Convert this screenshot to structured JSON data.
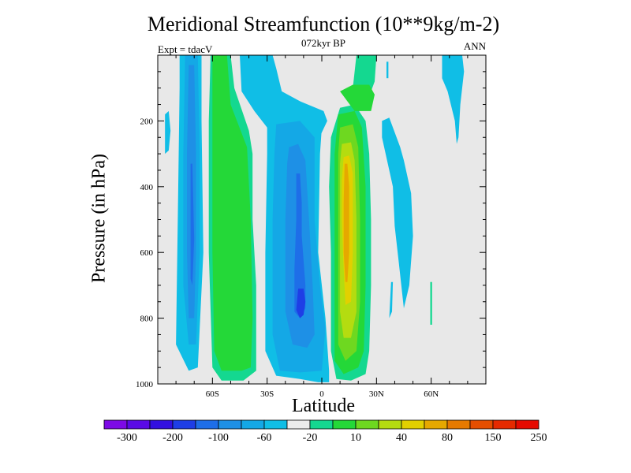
{
  "chart_data": {
    "type": "contour",
    "title": "Meridional Streamfunction (10**9kg/m-2)",
    "subtitle": "072kyr BP",
    "left_label": "Expt = tdacV",
    "right_label": "ANN",
    "xlabel": "Latitude",
    "ylabel": "Pressure (in hPa)",
    "xlim": [
      -90,
      90
    ],
    "ylim": [
      0,
      1000
    ],
    "y_reversed": true,
    "x_ticks": [
      {
        "v": -60,
        "label": "60S"
      },
      {
        "v": -30,
        "label": "30S"
      },
      {
        "v": 0,
        "label": "0"
      },
      {
        "v": 30,
        "label": "30N"
      },
      {
        "v": 60,
        "label": "60N"
      }
    ],
    "y_ticks": [
      {
        "v": 200,
        "label": "200"
      },
      {
        "v": 400,
        "label": "400"
      },
      {
        "v": 600,
        "label": "600"
      },
      {
        "v": 800,
        "label": "800"
      },
      {
        "v": 1000,
        "label": "1000"
      }
    ],
    "colorbar": {
      "colors": [
        "#7d0ae6",
        "#5a0ae6",
        "#3210e0",
        "#1e3ee6",
        "#1e6ee8",
        "#1e90e6",
        "#14a8e6",
        "#10bee6",
        "#ececec",
        "#14d890",
        "#24d838",
        "#6ed820",
        "#b4dc10",
        "#e2d000",
        "#e6a800",
        "#e67a00",
        "#e64e00",
        "#e62a00",
        "#e60a00"
      ],
      "labels": [
        {
          "i": 1,
          "t": "-300"
        },
        {
          "i": 3,
          "t": "-200"
        },
        {
          "i": 5,
          "t": "-100"
        },
        {
          "i": 7,
          "t": "-60"
        },
        {
          "i": 9,
          "t": "-20"
        },
        {
          "i": 11,
          "t": "10"
        },
        {
          "i": 13,
          "t": "40"
        },
        {
          "i": 15,
          "t": "80"
        },
        {
          "i": 17,
          "t": "150"
        },
        {
          "i": 19,
          "t": "250"
        }
      ]
    },
    "cells": [
      {
        "name": "sh-polar-cell",
        "level": -20,
        "color": "#10bee6",
        "pts": [
          [
            -78,
            0
          ],
          [
            -66,
            0
          ],
          [
            -66,
            200
          ],
          [
            -65,
            600
          ],
          [
            -68,
            950
          ],
          [
            -73,
            960
          ],
          [
            -80,
            880
          ],
          [
            -79,
            500
          ],
          [
            -78,
            100
          ]
        ]
      },
      {
        "name": "sh-polar-cell",
        "level": -40,
        "color": "#14a8e6",
        "pts": [
          [
            -75,
            0
          ],
          [
            -68,
            0
          ],
          [
            -67,
            300
          ],
          [
            -67,
            600
          ],
          [
            -69,
            880
          ],
          [
            -73,
            880
          ],
          [
            -76,
            700
          ],
          [
            -76,
            300
          ]
        ]
      },
      {
        "name": "sh-polar-cell",
        "level": -60,
        "color": "#1e90e6",
        "pts": [
          [
            -73,
            30
          ],
          [
            -70,
            30
          ],
          [
            -69,
            300
          ],
          [
            -69,
            600
          ],
          [
            -70,
            800
          ],
          [
            -73,
            800
          ],
          [
            -74,
            600
          ],
          [
            -74,
            300
          ]
        ]
      },
      {
        "name": "sh-polar-cell",
        "level": -80,
        "color": "#1e6ee8",
        "pts": [
          [
            -72,
            330
          ],
          [
            -71,
            330
          ],
          [
            -70,
            560
          ],
          [
            -71,
            700
          ],
          [
            -72,
            680
          ],
          [
            -72,
            500
          ]
        ]
      },
      {
        "name": "ferrel-cell",
        "level": 10,
        "color": "#14d890",
        "pts": [
          [
            -61,
            0
          ],
          [
            -50,
            0
          ],
          [
            -48,
            100
          ],
          [
            -40,
            230
          ],
          [
            -38,
            300
          ],
          [
            -38,
            500
          ],
          [
            -36,
            700
          ],
          [
            -36,
            960
          ],
          [
            -43,
            990
          ],
          [
            -55,
            990
          ],
          [
            -60,
            950
          ],
          [
            -62,
            600
          ],
          [
            -62,
            200
          ]
        ]
      },
      {
        "name": "ferrel-cell",
        "level": 20,
        "color": "#24d838",
        "pts": [
          [
            -60,
            0
          ],
          [
            -52,
            0
          ],
          [
            -50,
            150
          ],
          [
            -41,
            280
          ],
          [
            -39,
            500
          ],
          [
            -38,
            800
          ],
          [
            -39,
            950
          ],
          [
            -44,
            960
          ],
          [
            -55,
            960
          ],
          [
            -59,
            900
          ],
          [
            -60,
            600
          ],
          [
            -60,
            200
          ]
        ]
      },
      {
        "name": "nh-upper-cell",
        "level": -20,
        "color": "#10bee6",
        "pts": [
          [
            -45,
            0
          ],
          [
            -27,
            0
          ],
          [
            -25,
            40
          ],
          [
            -22,
            110
          ],
          [
            -12,
            140
          ],
          [
            1,
            170
          ],
          [
            3,
            200
          ],
          [
            -3,
            270
          ],
          [
            -8,
            310
          ],
          [
            -12,
            330
          ],
          [
            -20,
            310
          ],
          [
            -27,
            270
          ],
          [
            -30,
            220
          ],
          [
            -37,
            170
          ],
          [
            -44,
            110
          ]
        ]
      },
      {
        "name": "hadley-cell-south",
        "level": -20,
        "color": "#10bee6",
        "pts": [
          [
            -30,
            160
          ],
          [
            -12,
            145
          ],
          [
            -5,
            170
          ],
          [
            0,
            220
          ],
          [
            -1,
            300
          ],
          [
            -2,
            600
          ],
          [
            2,
            800
          ],
          [
            4,
            960
          ],
          [
            4,
            995
          ],
          [
            -2,
            995
          ],
          [
            -12,
            985
          ],
          [
            -25,
            975
          ],
          [
            -31,
            900
          ],
          [
            -31,
            600
          ],
          [
            -30,
            300
          ]
        ]
      },
      {
        "name": "hadley-cell-south",
        "level": -40,
        "color": "#14a8e6",
        "pts": [
          [
            -25,
            210
          ],
          [
            -12,
            200
          ],
          [
            -4,
            250
          ],
          [
            -4,
            500
          ],
          [
            -1,
            700
          ],
          [
            2,
            830
          ],
          [
            0,
            960
          ],
          [
            -12,
            965
          ],
          [
            -23,
            960
          ],
          [
            -27,
            850
          ],
          [
            -27,
            500
          ],
          [
            -26,
            300
          ]
        ]
      },
      {
        "name": "hadley-cell-south",
        "level": -60,
        "color": "#1e90e6",
        "pts": [
          [
            -18,
            280
          ],
          [
            -13,
            270
          ],
          [
            -9,
            320
          ],
          [
            -7,
            500
          ],
          [
            -5,
            700
          ],
          [
            -4,
            850
          ],
          [
            -8,
            890
          ],
          [
            -16,
            880
          ],
          [
            -20,
            780
          ],
          [
            -20,
            500
          ],
          [
            -19,
            330
          ]
        ]
      },
      {
        "name": "hadley-cell-south",
        "level": -80,
        "color": "#1e6ee8",
        "pts": [
          [
            -14,
            360
          ],
          [
            -12,
            360
          ],
          [
            -11,
            450
          ],
          [
            -11,
            550
          ],
          [
            -9,
            700
          ],
          [
            -9,
            770
          ],
          [
            -12,
            800
          ],
          [
            -15,
            780
          ],
          [
            -15,
            650
          ],
          [
            -14,
            500
          ]
        ]
      },
      {
        "name": "hadley-cell-south",
        "level": -100,
        "color": "#1e3ee6",
        "pts": [
          [
            -13,
            710
          ],
          [
            -10,
            710
          ],
          [
            -9,
            750
          ],
          [
            -10,
            790
          ],
          [
            -12,
            800
          ],
          [
            -14,
            775
          ]
        ]
      },
      {
        "name": "hadley-cell-north",
        "level": 10,
        "color": "#14d890",
        "pts": [
          [
            10,
            160
          ],
          [
            18,
            150
          ],
          [
            24,
            200
          ],
          [
            26,
            300
          ],
          [
            27,
            500
          ],
          [
            27,
            700
          ],
          [
            26,
            900
          ],
          [
            24,
            970
          ],
          [
            16,
            990
          ],
          [
            8,
            985
          ],
          [
            5,
            900
          ],
          [
            5,
            600
          ],
          [
            4,
            400
          ],
          [
            5,
            250
          ]
        ]
      },
      {
        "name": "hadley-cell-north",
        "level": 20,
        "color": "#24d838",
        "pts": [
          [
            9,
            180
          ],
          [
            18,
            170
          ],
          [
            22,
            220
          ],
          [
            24,
            400
          ],
          [
            24,
            700
          ],
          [
            23,
            900
          ],
          [
            20,
            950
          ],
          [
            12,
            970
          ],
          [
            7,
            930
          ],
          [
            7,
            500
          ],
          [
            7,
            300
          ]
        ]
      },
      {
        "name": "hadley-cell-north",
        "level": 40,
        "color": "#6ed820",
        "pts": [
          [
            10,
            220
          ],
          [
            17,
            210
          ],
          [
            20,
            280
          ],
          [
            21,
            500
          ],
          [
            21,
            750
          ],
          [
            19,
            900
          ],
          [
            13,
            930
          ],
          [
            9,
            880
          ],
          [
            9,
            500
          ],
          [
            9,
            300
          ]
        ]
      },
      {
        "name": "hadley-cell-north",
        "level": 60,
        "color": "#b4dc10",
        "pts": [
          [
            11,
            270
          ],
          [
            16,
            265
          ],
          [
            18,
            320
          ],
          [
            19,
            500
          ],
          [
            19,
            780
          ],
          [
            16,
            860
          ],
          [
            12,
            860
          ],
          [
            10,
            780
          ],
          [
            10,
            500
          ],
          [
            10,
            330
          ]
        ]
      },
      {
        "name": "hadley-cell-north",
        "level": 80,
        "color": "#e2d000",
        "pts": [
          [
            12,
            310
          ],
          [
            15,
            305
          ],
          [
            17,
            360
          ],
          [
            17,
            600
          ],
          [
            16,
            750
          ],
          [
            13,
            760
          ],
          [
            12,
            650
          ],
          [
            11,
            500
          ],
          [
            11,
            380
          ]
        ]
      },
      {
        "name": "hadley-cell-north",
        "level": 100,
        "color": "#e6a800",
        "pts": [
          [
            12.5,
            330
          ],
          [
            14,
            330
          ],
          [
            15,
            400
          ],
          [
            15,
            600
          ],
          [
            14,
            690
          ],
          [
            13,
            690
          ],
          [
            12,
            600
          ],
          [
            12,
            450
          ]
        ]
      },
      {
        "name": "nh-upper-cell",
        "level": 10,
        "color": "#14d890",
        "pts": [
          [
            19,
            0
          ],
          [
            30,
            0
          ],
          [
            29,
            80
          ],
          [
            27,
            110
          ],
          [
            19,
            120
          ],
          [
            17,
            100
          ]
        ]
      },
      {
        "name": "nh-upper-cell",
        "level": 20,
        "color": "#24d838",
        "pts": [
          [
            10,
            110
          ],
          [
            17,
            90
          ],
          [
            26,
            90
          ],
          [
            29,
            120
          ],
          [
            27,
            170
          ],
          [
            18,
            170
          ]
        ]
      },
      {
        "name": "nh-mid-cell",
        "level": -20,
        "color": "#10bee6",
        "pts": [
          [
            33,
            200
          ],
          [
            37,
            190
          ],
          [
            43,
            280
          ],
          [
            45,
            320
          ],
          [
            49,
            420
          ],
          [
            50,
            550
          ],
          [
            48,
            700
          ],
          [
            45,
            770
          ],
          [
            42,
            620
          ],
          [
            40,
            520
          ],
          [
            39,
            400
          ],
          [
            35,
            300
          ],
          [
            33,
            250
          ]
        ]
      },
      {
        "name": "nh-mid-cell",
        "level": -20,
        "color": "#10bee6",
        "pts": [
          [
            38,
            690
          ],
          [
            39,
            690
          ],
          [
            38.5,
            780
          ],
          [
            37,
            800
          ]
        ]
      },
      {
        "name": "nh-polar-cell",
        "level": -20,
        "color": "#10bee6",
        "pts": [
          [
            66,
            0
          ],
          [
            77,
            0
          ],
          [
            78,
            50
          ],
          [
            76,
            150
          ],
          [
            75,
            250
          ],
          [
            74,
            270
          ],
          [
            73,
            200
          ],
          [
            69,
            110
          ],
          [
            66,
            70
          ]
        ]
      },
      {
        "name": "nh-polar-cell",
        "level": 10,
        "color": "#14d890",
        "pts": [
          [
            59.5,
            690
          ],
          [
            60.5,
            690
          ],
          [
            60.5,
            820
          ],
          [
            59.5,
            820
          ]
        ]
      },
      {
        "name": "nh-upper-cell",
        "level": -20,
        "color": "#10bee6",
        "pts": [
          [
            35.5,
            20
          ],
          [
            36.5,
            20
          ],
          [
            36.5,
            70
          ],
          [
            35.5,
            70
          ]
        ]
      },
      {
        "name": "sh-polar-cell",
        "level": -20,
        "color": "#10bee6",
        "pts": [
          [
            -86,
            180
          ],
          [
            -84,
            170
          ],
          [
            -83,
            230
          ],
          [
            -84,
            290
          ],
          [
            -86,
            300
          ]
        ]
      }
    ]
  }
}
